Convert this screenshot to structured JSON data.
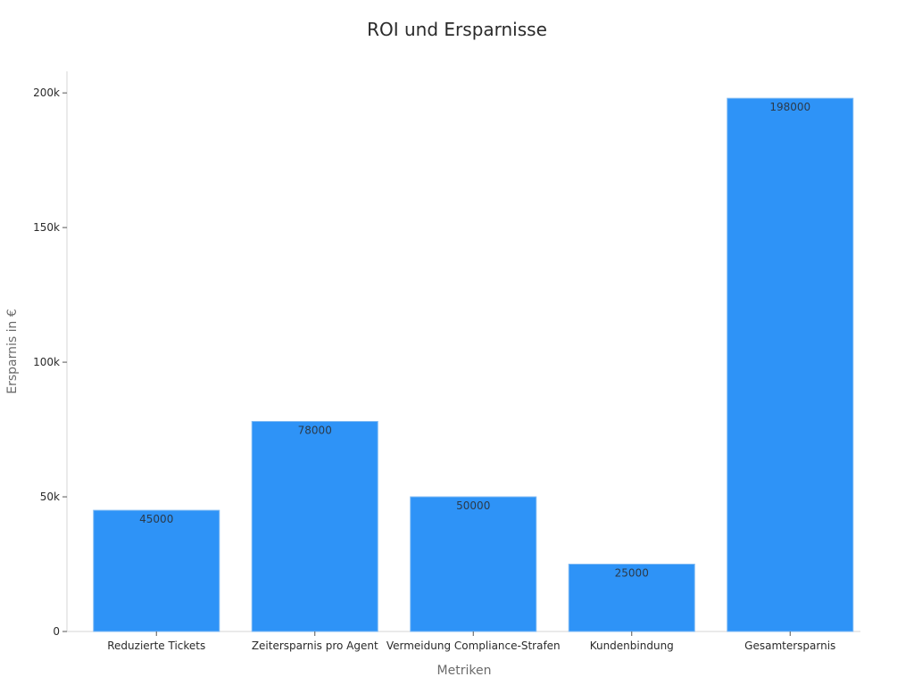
{
  "chart_data": {
    "type": "bar",
    "title": "ROI und Ersparnisse",
    "xlabel": "Metriken",
    "ylabel": "Ersparnis in €",
    "categories": [
      "Reduzierte Tickets",
      "Zeitersparnis pro Agent",
      "Vermeidung Compliance-Strafen",
      "Kundenbindung",
      "Gesamtersparnis"
    ],
    "values": [
      45000,
      78000,
      50000,
      25000,
      198000
    ],
    "data_labels": [
      "45000",
      "78000",
      "50000",
      "25000",
      "198000"
    ],
    "ylim": [
      0,
      208000
    ],
    "yticks": [
      0,
      50000,
      100000,
      150000,
      200000
    ],
    "ytick_labels": [
      "0",
      "50k",
      "100k",
      "150k",
      "200k"
    ],
    "bar_color": "#2e93f7",
    "grid": false,
    "legend": "none"
  }
}
